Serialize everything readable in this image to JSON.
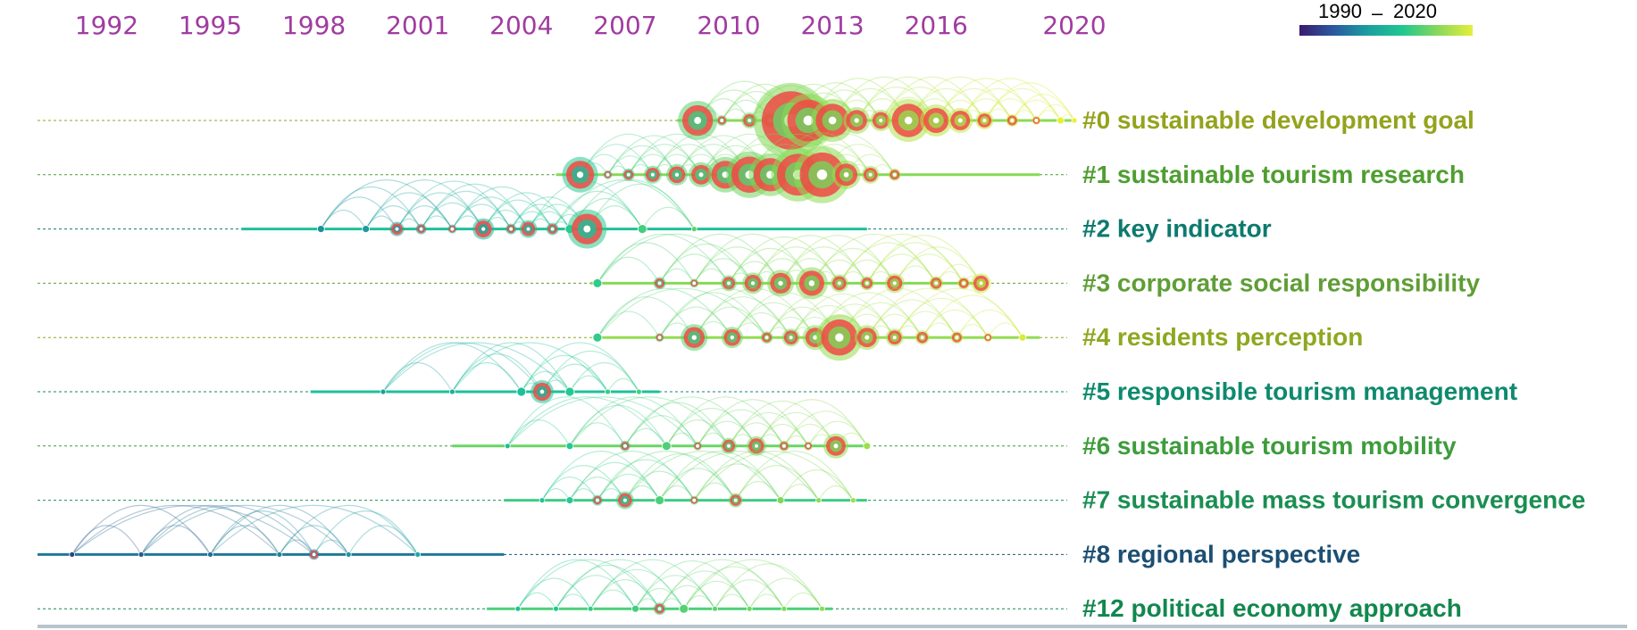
{
  "chart_data": {
    "type": "timeline",
    "year_ticks": [
      "1992",
      "1995",
      "1998",
      "2001",
      "2004",
      "2007",
      "2010",
      "2013",
      "2016",
      "2020"
    ],
    "legend": {
      "title_start": "1990",
      "title_sep": "–",
      "title_end": "2020",
      "gradient": [
        "#3b1a6e",
        "#2a5aa0",
        "#1aa0a0",
        "#20c890",
        "#8ad85a",
        "#e6ef3a"
      ]
    },
    "clusters": [
      {
        "id": "0",
        "label": "#0 sustainable development goal",
        "color": "#93a31e",
        "span": [
          2008.5,
          2020
        ],
        "peak": 2012.5,
        "nodes": [
          [
            2009.1,
            22
          ],
          [
            2009.8,
            6
          ],
          [
            2010.6,
            9
          ],
          [
            2011.2,
            9
          ],
          [
            2011.8,
            42
          ],
          [
            2012.3,
            30
          ],
          [
            2013.0,
            24
          ],
          [
            2013.7,
            15
          ],
          [
            2014.4,
            12
          ],
          [
            2015.2,
            24
          ],
          [
            2016.0,
            18
          ],
          [
            2016.7,
            14
          ],
          [
            2017.4,
            10
          ],
          [
            2018.2,
            7
          ],
          [
            2018.9,
            5
          ],
          [
            2019.6,
            3
          ],
          [
            2020.0,
            2
          ]
        ]
      },
      {
        "id": "1",
        "label": "#1 sustainable tourism research",
        "color": "#4f9e30",
        "span": [
          2005.0,
          2019
        ],
        "peak": 2012.0,
        "nodes": [
          [
            2005.7,
            20
          ],
          [
            2006.5,
            5
          ],
          [
            2007.1,
            7
          ],
          [
            2007.8,
            10
          ],
          [
            2008.5,
            12
          ],
          [
            2009.2,
            14
          ],
          [
            2009.9,
            20
          ],
          [
            2010.6,
            26
          ],
          [
            2011.2,
            24
          ],
          [
            2012.0,
            30
          ],
          [
            2012.7,
            32
          ],
          [
            2013.4,
            16
          ],
          [
            2014.1,
            10
          ],
          [
            2014.8,
            7
          ]
        ]
      },
      {
        "id": "2",
        "label": "#2 key indicator",
        "color": "#0d7a6e",
        "span": [
          1995.9,
          2014
        ],
        "peak": 2004,
        "nodes": [
          [
            1998.2,
            3
          ],
          [
            1999.5,
            3
          ],
          [
            2000.4,
            8
          ],
          [
            2001.1,
            6
          ],
          [
            2002.0,
            5
          ],
          [
            2002.9,
            12
          ],
          [
            2003.7,
            6
          ],
          [
            2004.2,
            10
          ],
          [
            2004.9,
            7
          ],
          [
            2005.4,
            4
          ],
          [
            2005.9,
            22
          ],
          [
            2007.5,
            4
          ],
          [
            2009.0,
            2
          ]
        ]
      },
      {
        "id": "3",
        "label": "#3 corporate social responsibility",
        "color": "#5f9e36",
        "span": [
          2006.0,
          2017.5
        ],
        "peak": 2012,
        "nodes": [
          [
            2006.2,
            4
          ],
          [
            2008.0,
            7
          ],
          [
            2009.0,
            5
          ],
          [
            2010.0,
            9
          ],
          [
            2010.7,
            12
          ],
          [
            2011.5,
            15
          ],
          [
            2012.4,
            18
          ],
          [
            2013.2,
            10
          ],
          [
            2014.0,
            8
          ],
          [
            2014.8,
            11
          ],
          [
            2016.0,
            8
          ],
          [
            2016.8,
            7
          ],
          [
            2017.3,
            11
          ]
        ]
      },
      {
        "id": "4",
        "label": "#4 residents perception",
        "color": "#8ea820",
        "span": [
          2006.2,
          2019
        ],
        "peak": 2013,
        "nodes": [
          [
            2006.2,
            4
          ],
          [
            2008.0,
            5
          ],
          [
            2009.0,
            15
          ],
          [
            2010.1,
            12
          ],
          [
            2011.1,
            7
          ],
          [
            2011.8,
            10
          ],
          [
            2012.5,
            14
          ],
          [
            2013.2,
            26
          ],
          [
            2014.0,
            14
          ],
          [
            2014.8,
            10
          ],
          [
            2015.6,
            8
          ],
          [
            2016.6,
            7
          ],
          [
            2017.5,
            5
          ],
          [
            2018.5,
            3
          ]
        ]
      },
      {
        "id": "5",
        "label": "#5 responsible tourism management",
        "color": "#0e8a6e",
        "span": [
          1997.9,
          2008.0
        ],
        "peak": 2004,
        "nodes": [
          [
            2000.0,
            2
          ],
          [
            2002.0,
            2
          ],
          [
            2004.0,
            4
          ],
          [
            2004.6,
            13
          ],
          [
            2005.4,
            4
          ],
          [
            2006.5,
            2
          ],
          [
            2007.4,
            2
          ]
        ]
      },
      {
        "id": "6",
        "label": "#6 sustainable tourism mobility",
        "color": "#3e9c3c",
        "span": [
          2002.0,
          2014.0
        ],
        "peak": 2010,
        "nodes": [
          [
            2003.6,
            2
          ],
          [
            2005.4,
            3
          ],
          [
            2007.0,
            6
          ],
          [
            2008.2,
            4
          ],
          [
            2009.1,
            5
          ],
          [
            2010.0,
            9
          ],
          [
            2010.8,
            11
          ],
          [
            2011.6,
            6
          ],
          [
            2012.3,
            5
          ],
          [
            2013.1,
            14
          ],
          [
            2014.0,
            3
          ]
        ]
      },
      {
        "id": "7",
        "label": "#7 sustainable mass tourism convergence",
        "color": "#1a8e52",
        "span": [
          2003.5,
          2014.0
        ],
        "peak": 2007,
        "nodes": [
          [
            2004.6,
            2
          ],
          [
            2005.4,
            3
          ],
          [
            2006.2,
            6
          ],
          [
            2007.0,
            10
          ],
          [
            2008.0,
            4
          ],
          [
            2009.0,
            5
          ],
          [
            2010.2,
            8
          ],
          [
            2011.5,
            3
          ],
          [
            2012.6,
            2
          ],
          [
            2013.6,
            2
          ]
        ]
      },
      {
        "id": "8",
        "label": "#8 regional perspective",
        "color": "#1c4f72",
        "span": [
          1990.0,
          2003.5
        ],
        "peak": 1996,
        "nodes": [
          [
            1991.0,
            2
          ],
          [
            1993.0,
            2
          ],
          [
            1995.0,
            2
          ],
          [
            1997.0,
            2
          ],
          [
            1998.0,
            6
          ],
          [
            1999.0,
            2
          ],
          [
            2001.0,
            2
          ]
        ]
      },
      {
        "id": "12",
        "label": "#12 political economy approach",
        "color": "#12874e",
        "span": [
          2003.0,
          2013.0
        ],
        "peak": 2008,
        "nodes": [
          [
            2003.9,
            2
          ],
          [
            2005.0,
            2
          ],
          [
            2006.0,
            2
          ],
          [
            2007.3,
            3
          ],
          [
            2008.0,
            7
          ],
          [
            2008.7,
            4
          ],
          [
            2009.6,
            2
          ],
          [
            2010.6,
            2
          ],
          [
            2011.6,
            2
          ],
          [
            2012.7,
            2
          ]
        ]
      }
    ]
  }
}
